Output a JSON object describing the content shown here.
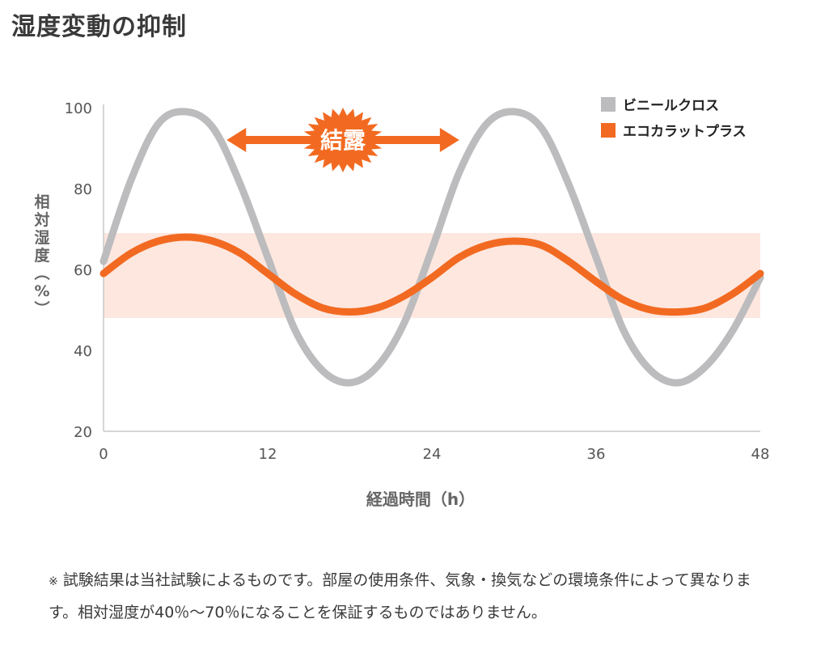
{
  "title": "湿度変動の抑制",
  "note": {
    "mark": "※",
    "text": "試験結果は当社試験によるものです。部屋の使用条件、気象・換気などの環境条件によって異なります。相対湿度が40％〜70％になることを保証するものではありません。"
  },
  "colors": {
    "vinyl": "#bcbcbe",
    "eco": "#f26a21",
    "band": "#fde7df",
    "axis": "#c8c8c8",
    "text": "#555555"
  },
  "chart_data": {
    "type": "line",
    "xlabel": "経過時間（h）",
    "ylabel": "相対湿度（%）",
    "xlim": [
      0,
      48
    ],
    "ylim": [
      20,
      100
    ],
    "x_ticks": [
      "0",
      "12",
      "24",
      "36",
      "48"
    ],
    "y_ticks": [
      "100",
      "80",
      "60",
      "40",
      "20"
    ],
    "legend_position": "top-right",
    "band": {
      "from": 48,
      "to": 69
    },
    "annotation": {
      "label": "結露",
      "x_from": 9,
      "x_to": 26,
      "y": 92
    },
    "series": [
      {
        "name": "ビニールクロス",
        "color": "#bcbcbe",
        "x": [
          0,
          2,
          4,
          6,
          8,
          10,
          12,
          14,
          16,
          18,
          20,
          22,
          24,
          26,
          28,
          30,
          32,
          34,
          36,
          38,
          40,
          42,
          44,
          46,
          48
        ],
        "values": [
          62,
          82,
          96,
          99,
          95,
          81,
          63,
          45,
          35,
          32,
          36,
          47,
          65,
          84,
          96,
          99,
          95,
          81,
          63,
          45,
          35,
          32,
          36,
          45,
          58
        ]
      },
      {
        "name": "エコカラットプラス",
        "color": "#f26a21",
        "x": [
          0,
          2,
          4,
          6,
          8,
          10,
          12,
          14,
          16,
          18,
          20,
          22,
          24,
          26,
          28,
          30,
          32,
          34,
          36,
          38,
          40,
          42,
          44,
          46,
          48
        ],
        "values": [
          59,
          64,
          67,
          68,
          67,
          64,
          59,
          54,
          50.5,
          49.5,
          50.5,
          53.5,
          58,
          63,
          66,
          67,
          66,
          62,
          57,
          52.5,
          50,
          49.5,
          50.5,
          54,
          59
        ]
      }
    ]
  }
}
